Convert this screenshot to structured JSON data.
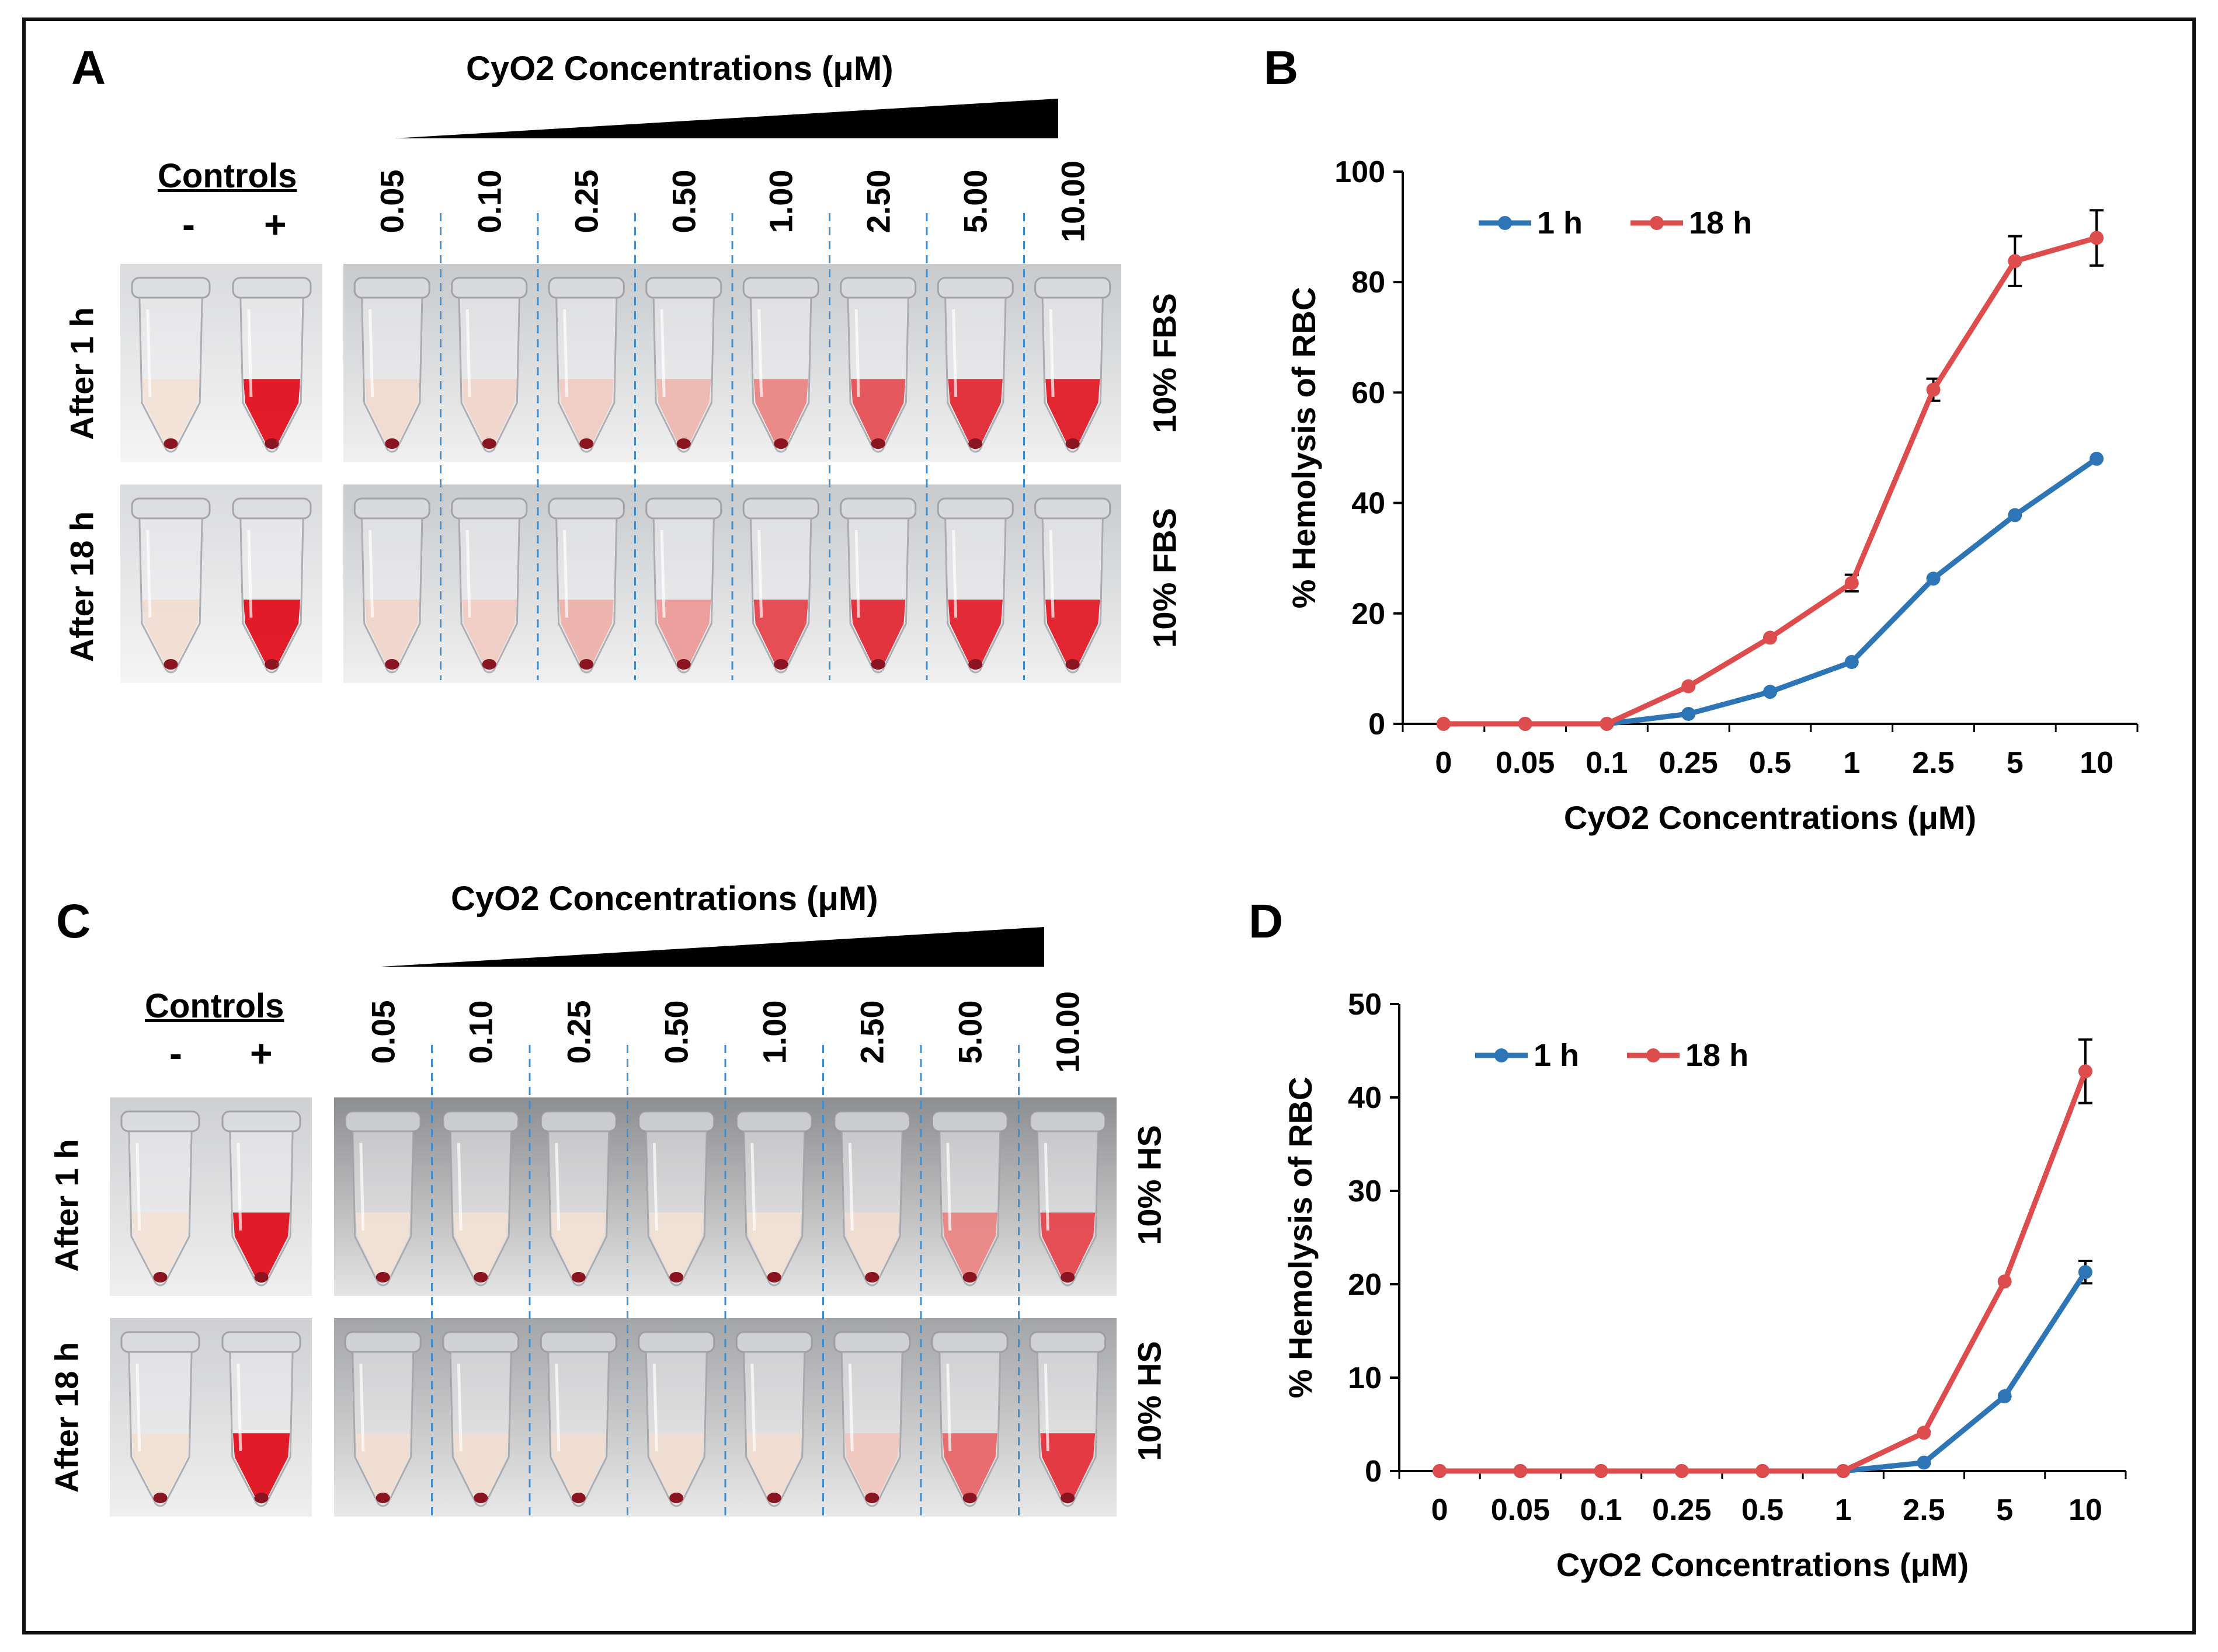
{
  "figure": {
    "panels": {
      "A": {
        "label": "A",
        "concentration_title": "CyO2 Concentrations (μM)",
        "controls_title": "Controls",
        "control_neg": "-",
        "control_pos": "+",
        "concentrations": [
          "0.05",
          "0.10",
          "0.25",
          "0.50",
          "1.00",
          "2.50",
          "5.00",
          "10.00"
        ],
        "rows": [
          "After 1 h",
          "After 18 h"
        ],
        "media": [
          "10% FBS",
          "10% FBS"
        ],
        "redness_1h": [
          0.05,
          0.08,
          0.12,
          0.22,
          0.45,
          0.7,
          0.88,
          0.95
        ],
        "redness_18h": [
          0.08,
          0.12,
          0.25,
          0.35,
          0.75,
          0.88,
          0.92,
          0.95
        ]
      },
      "C": {
        "label": "C",
        "concentration_title": "CyO2 Concentrations (μM)",
        "controls_title": "Controls",
        "control_neg": "-",
        "control_pos": "+",
        "concentrations": [
          "0.05",
          "0.10",
          "0.25",
          "0.50",
          "1.00",
          "2.50",
          "5.00",
          "10.00"
        ],
        "rows": [
          "After 1 h",
          "After 18 h"
        ],
        "media": [
          "10% HS",
          "10% HS"
        ],
        "redness_1h": [
          0.03,
          0.03,
          0.03,
          0.03,
          0.03,
          0.05,
          0.45,
          0.75
        ],
        "redness_18h": [
          0.04,
          0.04,
          0.04,
          0.04,
          0.05,
          0.15,
          0.6,
          0.85
        ]
      }
    },
    "colors": {
      "one_hour": "#2e75b6",
      "eighteen_hour": "#de4d4d",
      "dash": "#3d8fd1"
    }
  },
  "chart_data": [
    {
      "panel": "B",
      "type": "line",
      "categories": [
        "0",
        "0.05",
        "0.1",
        "0.25",
        "0.5",
        "1",
        "2.5",
        "5",
        "10"
      ],
      "series": [
        {
          "name": "1 h",
          "values": [
            0,
            0,
            0,
            1.8,
            5.8,
            11.2,
            26.3,
            37.8,
            48.0
          ],
          "errors": [
            0,
            0,
            0,
            0,
            0,
            0,
            0,
            0,
            0
          ]
        },
        {
          "name": "18 h",
          "values": [
            0,
            0,
            0,
            6.8,
            15.6,
            25.5,
            60.5,
            83.8,
            88.0
          ],
          "errors": [
            0,
            0,
            0,
            0,
            0,
            1.5,
            2.0,
            4.5,
            5.0
          ]
        }
      ],
      "ylim": [
        0,
        100
      ],
      "yticks": [
        "0",
        "20",
        "40",
        "60",
        "80",
        "100"
      ],
      "xlabel": "CyO2 Concentrations (μM)",
      "ylabel": "% Hemolysis of RBC",
      "legend": "top-left"
    },
    {
      "panel": "D",
      "type": "line",
      "categories": [
        "0",
        "0.05",
        "0.1",
        "0.25",
        "0.5",
        "1",
        "2.5",
        "5",
        "10"
      ],
      "series": [
        {
          "name": "1 h",
          "values": [
            0,
            0,
            0,
            0,
            0,
            0,
            0.9,
            8.0,
            21.3
          ],
          "errors": [
            0,
            0,
            0,
            0,
            0,
            0,
            0,
            0,
            1.2
          ]
        },
        {
          "name": "18 h",
          "values": [
            0,
            0,
            0,
            0,
            0,
            0,
            4.1,
            20.3,
            42.8
          ],
          "errors": [
            0,
            0,
            0,
            0,
            0,
            0,
            0,
            0,
            3.4
          ]
        }
      ],
      "ylim": [
        0,
        50
      ],
      "yticks": [
        "0",
        "10",
        "20",
        "30",
        "40",
        "50"
      ],
      "xlabel": "CyO2 Concentrations (μM)",
      "ylabel": "% Hemolysis of RBC",
      "legend": "top-left"
    }
  ],
  "chart_labels": {
    "B": "B",
    "D": "D"
  }
}
